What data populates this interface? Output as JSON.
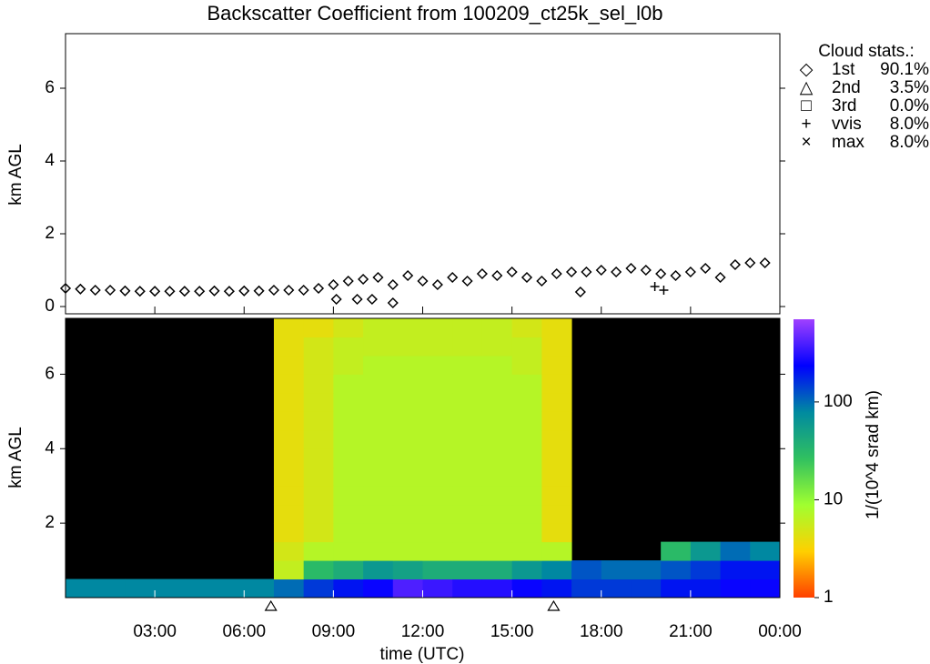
{
  "chart_data": [
    {
      "type": "scatter",
      "title": "Backscatter Coefficient from 100209_ct25k_sel_l0b",
      "ylabel": "km AGL",
      "xlim": [
        0,
        24
      ],
      "xticks": [
        3,
        6,
        9,
        12,
        15,
        18,
        21,
        24
      ],
      "ylim": [
        -0.2,
        7.5
      ],
      "yticks": [
        0,
        2,
        4,
        6
      ],
      "series": [
        {
          "marker": "diamond",
          "color": "#000000",
          "x": [
            0,
            0.5,
            1,
            1.5,
            2,
            2.5,
            3,
            3.5,
            4,
            4.5,
            5,
            5.5,
            6,
            6.5,
            7,
            7.5,
            8,
            8.5,
            9,
            9.5,
            10,
            10.5,
            11,
            11.5,
            12,
            12.5,
            13,
            13.5,
            14,
            14.5,
            15,
            15.5,
            16,
            16.5,
            17,
            17.5,
            18,
            18.5,
            19,
            19.5,
            20,
            20.5,
            21,
            21.5,
            22,
            22.5,
            23,
            23.5,
            9.1,
            9.8,
            10.3,
            11.0,
            17.3
          ],
          "values": [
            0.5,
            0.48,
            0.45,
            0.45,
            0.43,
            0.42,
            0.42,
            0.42,
            0.42,
            0.42,
            0.43,
            0.42,
            0.43,
            0.43,
            0.45,
            0.45,
            0.45,
            0.5,
            0.6,
            0.7,
            0.75,
            0.8,
            0.6,
            0.85,
            0.7,
            0.6,
            0.8,
            0.7,
            0.9,
            0.85,
            0.95,
            0.8,
            0.7,
            0.9,
            0.95,
            0.95,
            1.0,
            0.95,
            1.05,
            1.0,
            0.9,
            0.85,
            0.95,
            1.05,
            0.8,
            1.15,
            1.2,
            1.2,
            0.2,
            0.2,
            0.2,
            0.1,
            0.4
          ]
        },
        {
          "marker": "plus",
          "color": "#000000",
          "x": [
            19.8,
            20.1
          ],
          "values": [
            0.55,
            0.45
          ]
        }
      ],
      "legend_title": "Cloud stats.:",
      "stats": [
        {
          "symbol": "◇",
          "name": "1st",
          "value": "90.1%"
        },
        {
          "symbol": "△",
          "name": "2nd",
          "value": "3.5%"
        },
        {
          "symbol": "□",
          "name": "3rd",
          "value": "0.0%"
        },
        {
          "symbol": "+",
          "name": "vvis",
          "value": "8.0%"
        },
        {
          "symbol": "×",
          "name": "max",
          "value": "8.0%"
        }
      ]
    },
    {
      "type": "heatmap",
      "xlabel": "time (UTC)",
      "ylabel": "km AGL",
      "xlim": [
        0,
        24
      ],
      "xticks": [
        {
          "value": 3,
          "label": "03:00"
        },
        {
          "value": 6,
          "label": "06:00"
        },
        {
          "value": 9,
          "label": "09:00"
        },
        {
          "value": 12,
          "label": "12:00"
        },
        {
          "value": 15,
          "label": "15:00"
        },
        {
          "value": 18,
          "label": "18:00"
        },
        {
          "value": 21,
          "label": "21:00"
        },
        {
          "value": 24,
          "label": "00:00"
        }
      ],
      "ylim": [
        0,
        7.5
      ],
      "yticks": [
        2,
        4,
        6
      ],
      "x_edges": [
        0,
        1,
        2,
        3,
        4,
        5,
        6,
        7,
        8,
        9,
        10,
        11,
        12,
        13,
        14,
        15,
        16,
        17,
        18,
        19,
        20,
        21,
        22,
        23,
        24
      ],
      "y_edges": [
        0,
        0.5,
        1,
        1.5,
        2,
        2.5,
        3,
        3.5,
        4,
        4.5,
        5,
        5.5,
        6,
        6.5,
        7,
        7.5
      ],
      "z": [
        [
          80,
          80,
          80,
          80,
          80,
          80,
          80,
          100,
          150,
          200,
          250,
          400,
          350,
          300,
          300,
          250,
          200,
          150,
          150,
          150,
          200,
          200,
          250,
          250
        ],
        [
          null,
          null,
          null,
          null,
          null,
          null,
          null,
          6,
          30,
          40,
          60,
          50,
          40,
          40,
          40,
          60,
          80,
          120,
          100,
          100,
          120,
          150,
          200,
          200
        ],
        [
          null,
          null,
          null,
          null,
          null,
          null,
          null,
          5,
          7,
          7,
          7,
          7,
          7,
          7,
          7,
          7,
          7,
          null,
          null,
          null,
          30,
          60,
          100,
          80
        ],
        [
          null,
          null,
          null,
          null,
          null,
          null,
          null,
          4,
          5,
          7,
          7,
          7,
          7,
          7,
          7,
          7,
          4,
          null,
          null,
          null,
          null,
          null,
          null,
          null
        ],
        [
          null,
          null,
          null,
          null,
          null,
          null,
          null,
          4,
          5,
          7,
          7,
          7,
          7,
          7,
          7,
          7,
          4,
          null,
          null,
          null,
          null,
          null,
          null,
          null
        ],
        [
          null,
          null,
          null,
          null,
          null,
          null,
          null,
          4,
          5,
          7,
          7,
          7,
          7,
          7,
          7,
          7,
          4,
          null,
          null,
          null,
          null,
          null,
          null,
          null
        ],
        [
          null,
          null,
          null,
          null,
          null,
          null,
          null,
          4,
          5,
          7,
          7,
          7,
          7,
          7,
          7,
          7,
          4,
          null,
          null,
          null,
          null,
          null,
          null,
          null
        ],
        [
          null,
          null,
          null,
          null,
          null,
          null,
          null,
          4,
          5,
          7,
          7,
          7,
          7,
          7,
          7,
          7,
          4,
          null,
          null,
          null,
          null,
          null,
          null,
          null
        ],
        [
          null,
          null,
          null,
          null,
          null,
          null,
          null,
          4,
          5,
          7,
          7,
          7,
          7,
          7,
          7,
          7,
          4,
          null,
          null,
          null,
          null,
          null,
          null,
          null
        ],
        [
          null,
          null,
          null,
          null,
          null,
          null,
          null,
          4,
          5,
          7,
          7,
          7,
          7,
          7,
          7,
          7,
          4,
          null,
          null,
          null,
          null,
          null,
          null,
          null
        ],
        [
          null,
          null,
          null,
          null,
          null,
          null,
          null,
          4,
          5,
          7,
          7,
          7,
          7,
          7,
          7,
          7,
          4,
          null,
          null,
          null,
          null,
          null,
          null,
          null
        ],
        [
          null,
          null,
          null,
          null,
          null,
          null,
          null,
          4,
          5,
          7,
          7,
          7,
          7,
          7,
          7,
          7,
          4,
          null,
          null,
          null,
          null,
          null,
          null,
          null
        ],
        [
          null,
          null,
          null,
          null,
          null,
          null,
          null,
          4,
          5,
          6,
          7,
          7,
          7,
          7,
          7,
          6,
          4,
          null,
          null,
          null,
          null,
          null,
          null,
          null
        ],
        [
          null,
          null,
          null,
          null,
          null,
          null,
          null,
          4,
          5,
          6,
          6,
          6,
          6,
          6,
          6,
          6,
          4,
          null,
          null,
          null,
          null,
          null,
          null,
          null
        ],
        [
          null,
          null,
          null,
          null,
          null,
          null,
          null,
          4,
          4,
          5,
          6,
          6,
          6,
          6,
          6,
          5,
          4,
          null,
          null,
          null,
          null,
          null,
          null,
          null
        ]
      ],
      "markers_x": [
        6.9,
        16.4
      ],
      "colorbar": {
        "label": "1/(10^4 srad km)",
        "scale": "log",
        "lim": [
          1,
          700
        ],
        "ticks": [
          1,
          10,
          100
        ],
        "colors": [
          "#ff4000",
          "#ffd000",
          "#a0ff30",
          "#30c060",
          "#008aa0",
          "#0000ff",
          "#a040ff"
        ]
      }
    }
  ]
}
